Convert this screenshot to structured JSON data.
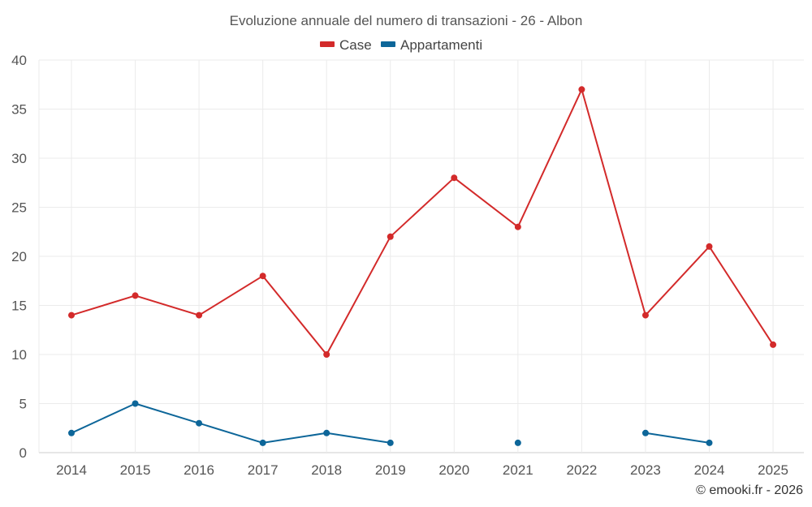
{
  "chart_data": {
    "type": "line",
    "title": "Evoluzione annuale del numero di transazioni - 26 - Albon",
    "categories": [
      "2014",
      "2015",
      "2016",
      "2017",
      "2018",
      "2019",
      "2020",
      "2021",
      "2022",
      "2023",
      "2024",
      "2025"
    ],
    "ylim": [
      0,
      40
    ],
    "yticks": [
      0,
      5,
      10,
      15,
      20,
      25,
      30,
      35,
      40
    ],
    "grid": true,
    "legend_position": "top-center",
    "series": [
      {
        "name": "Case",
        "color": "#d32a2a",
        "values": [
          14,
          16,
          14,
          18,
          10,
          22,
          28,
          23,
          37,
          14,
          21,
          11
        ]
      },
      {
        "name": "Appartamenti",
        "color": "#0d6699",
        "values": [
          2,
          5,
          3,
          1,
          2,
          1,
          null,
          1,
          null,
          2,
          1,
          null
        ]
      }
    ]
  },
  "credit": "© emooki.fr - 2026"
}
